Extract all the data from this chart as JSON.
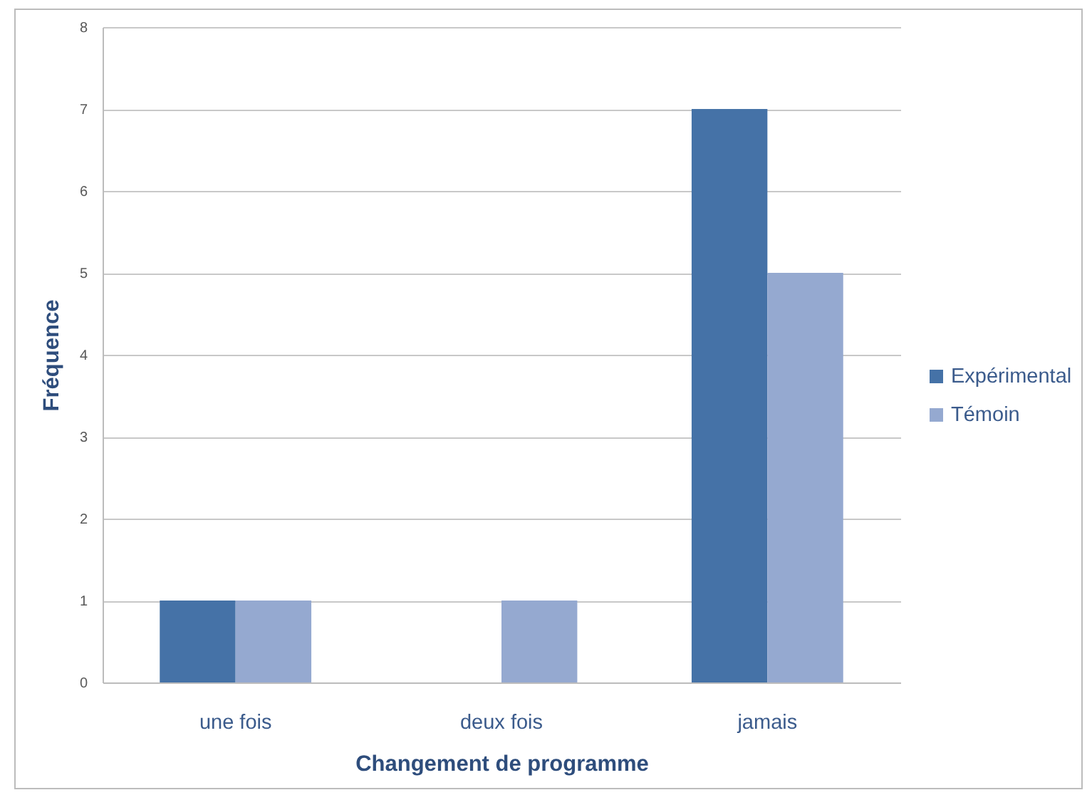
{
  "chart_data": {
    "type": "bar",
    "xlabel": "Changement de programme",
    "ylabel": "Fréquence",
    "categories": [
      "une fois",
      "deux fois",
      "jamais"
    ],
    "series": [
      {
        "name": "Expérimental",
        "color": "#4572a7",
        "values": [
          1,
          0,
          7
        ]
      },
      {
        "name": "Témoin",
        "color": "#95a9d0",
        "values": [
          1,
          1,
          5
        ]
      }
    ],
    "ylim": [
      0,
      8
    ],
    "yticks": [
      0,
      1,
      2,
      3,
      4,
      5,
      6,
      7,
      8
    ],
    "grid": "y",
    "legend": "right"
  }
}
